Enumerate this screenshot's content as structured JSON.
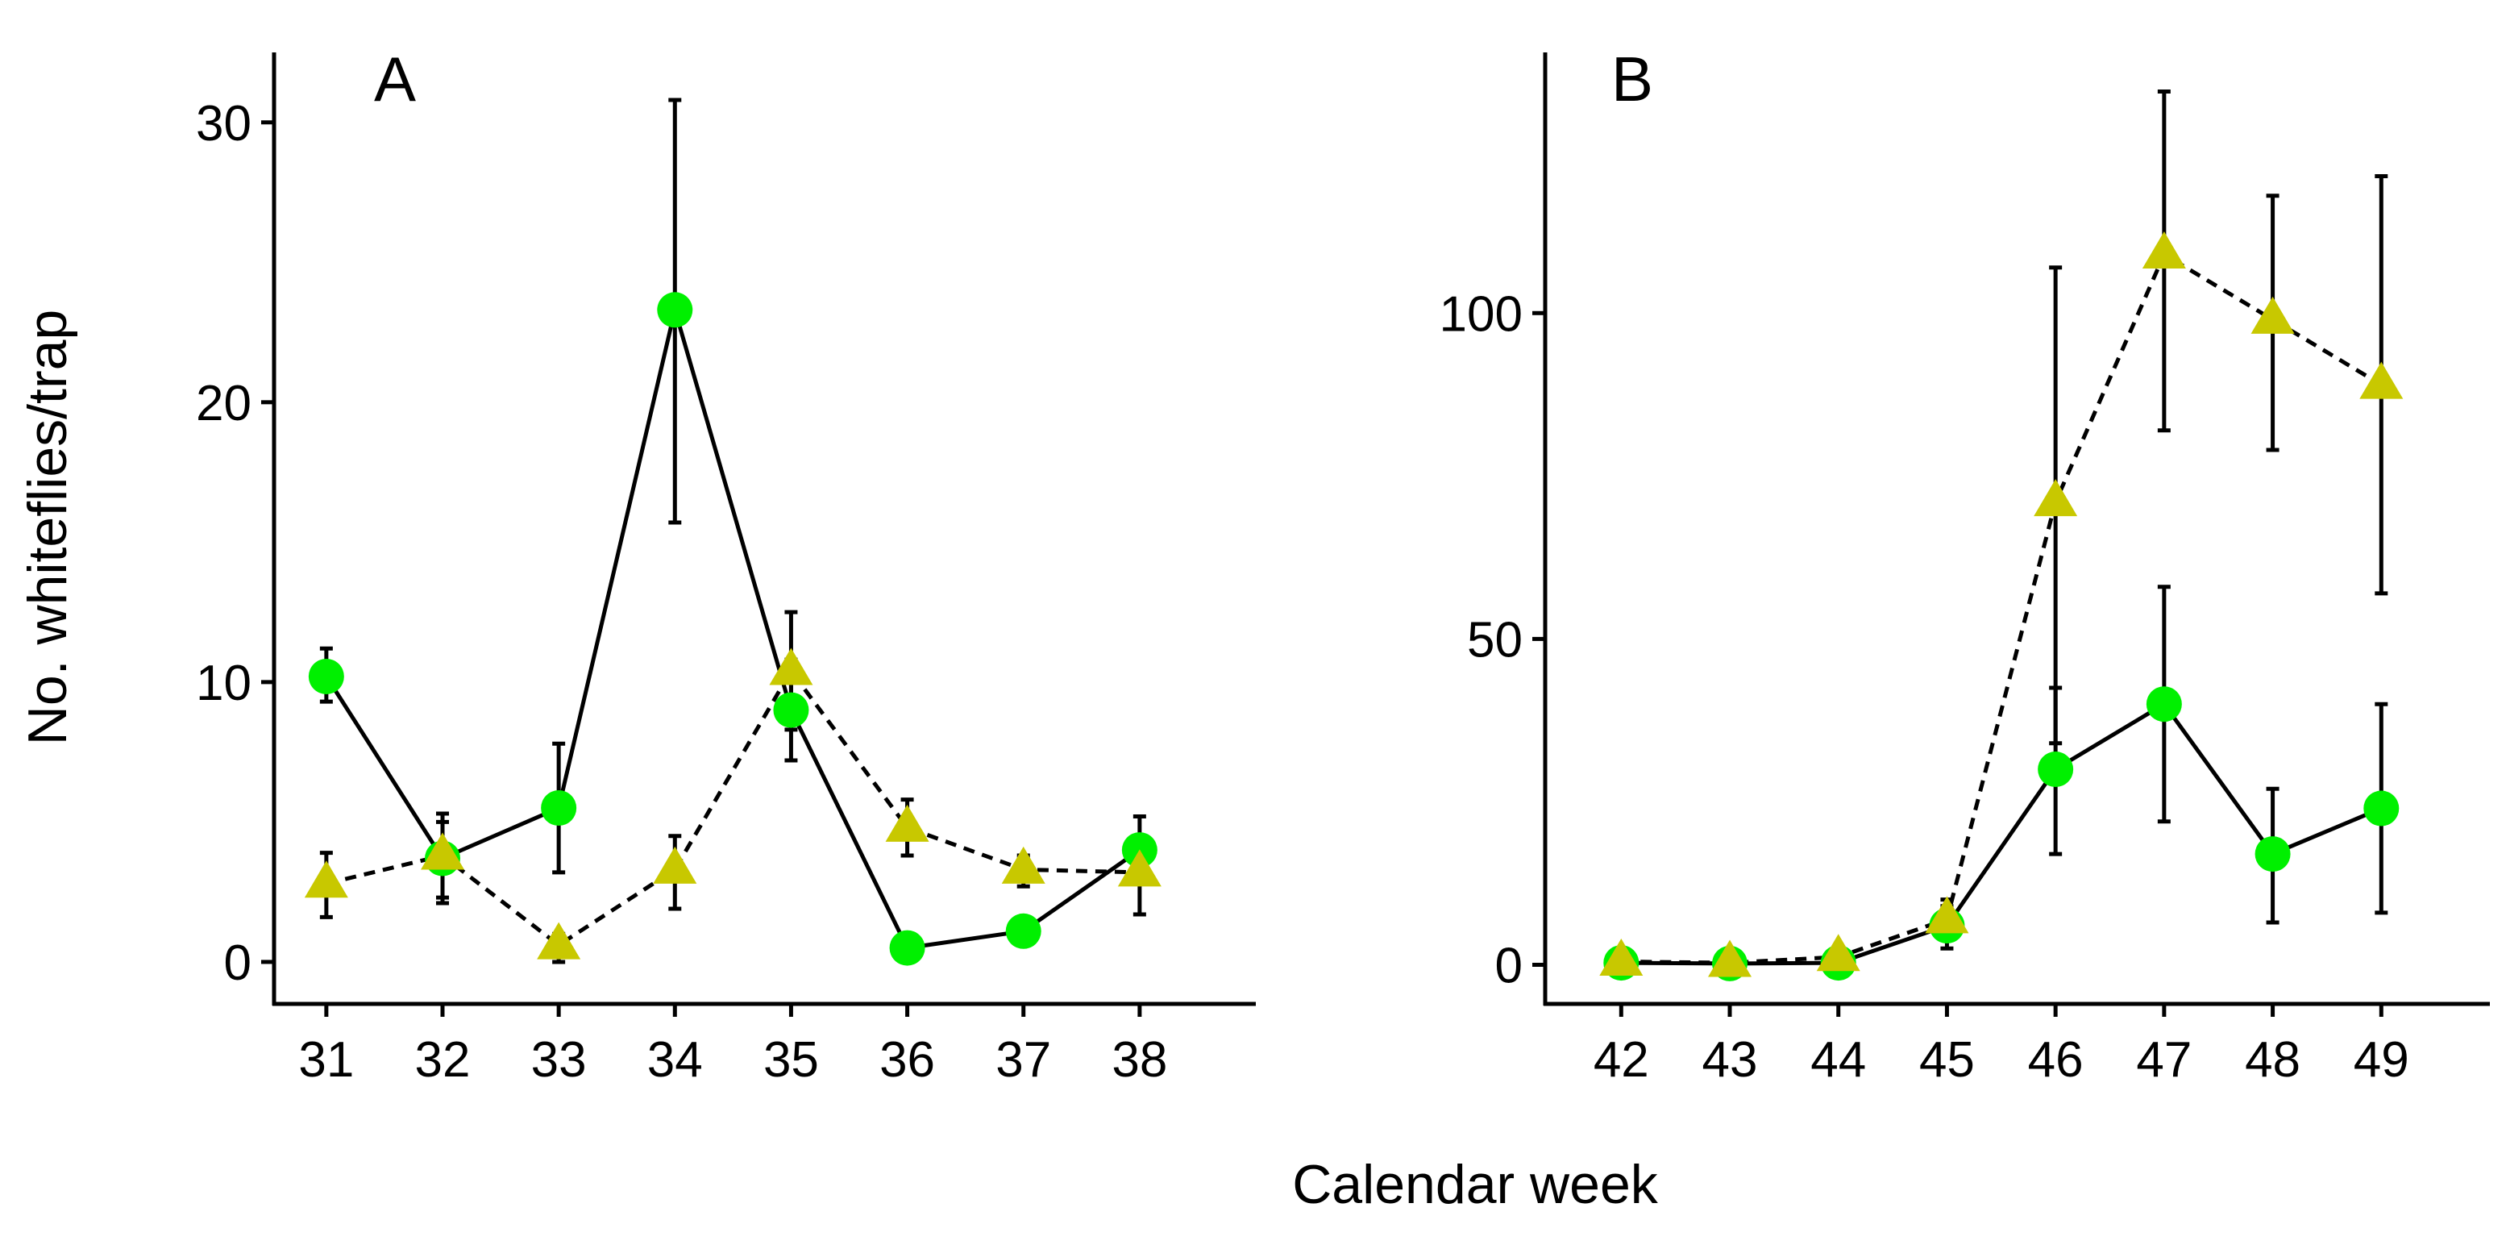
{
  "colors": {
    "circle_series": "#00f000",
    "triangle_series": "#c8c800",
    "axis": "#000000",
    "error_bar": "#000000"
  },
  "figure": {
    "xlabel": "Calendar week",
    "ylabel": "No. whiteflies/trap"
  },
  "chart_data": [
    {
      "type": "line",
      "panel_label": "A",
      "x": [
        31,
        32,
        33,
        34,
        35,
        36,
        37,
        38
      ],
      "xlim": [
        30.55,
        39.0
      ],
      "ylim": [
        -1.5,
        32.5
      ],
      "yticks": [
        0,
        10,
        20,
        30
      ],
      "grid": false,
      "legend": "none",
      "series": [
        {
          "marker": "circle",
          "linestyle": "solid",
          "color": "#00f000",
          "values": [
            10.2,
            3.7,
            5.5,
            23.3,
            9.0,
            0.5,
            1.1,
            4.0
          ],
          "error_low": [
            9.3,
            2.1,
            3.2,
            15.7,
            7.2,
            0.5,
            1.1,
            2.9
          ],
          "error_high": [
            11.2,
            5.3,
            7.8,
            30.8,
            10.8,
            0.5,
            1.1,
            5.2
          ]
        },
        {
          "marker": "triangle",
          "linestyle": "dashed",
          "color": "#c8c800",
          "values": [
            2.8,
            3.8,
            0.6,
            3.3,
            10.4,
            4.8,
            3.3,
            3.2
          ],
          "error_low": [
            1.6,
            2.3,
            0.0,
            1.9,
            8.3,
            3.8,
            2.7,
            1.7
          ],
          "error_high": [
            3.9,
            5.0,
            1.0,
            4.5,
            12.5,
            5.8,
            3.8,
            4.2
          ]
        }
      ]
    },
    {
      "type": "line",
      "panel_label": "B",
      "x": [
        42,
        43,
        44,
        45,
        46,
        47,
        48,
        49
      ],
      "xlim": [
        41.3,
        50.0
      ],
      "ylim": [
        -6,
        140
      ],
      "yticks": [
        0,
        50,
        100
      ],
      "grid": false,
      "legend": "none",
      "series": [
        {
          "marker": "circle",
          "linestyle": "solid",
          "color": "#00f000",
          "values": [
            0.3,
            0.2,
            0.3,
            6.0,
            30.0,
            40.0,
            17.0,
            24.0
          ],
          "error_low": [
            0.0,
            0.0,
            0.0,
            2.5,
            17.0,
            22.0,
            6.5,
            8.0
          ],
          "error_high": [
            0.6,
            0.5,
            0.6,
            9.0,
            42.5,
            58.0,
            27.0,
            40.0
          ]
        },
        {
          "marker": "triangle",
          "linestyle": "dashed",
          "color": "#c8c800",
          "values": [
            0.5,
            0.3,
            1.2,
            7.0,
            71.0,
            109.0,
            99.0,
            89.0
          ],
          "error_low": [
            0.0,
            0.0,
            0.3,
            4.0,
            34.0,
            82.0,
            79.0,
            57.0
          ],
          "error_high": [
            1.0,
            0.6,
            2.0,
            10.0,
            107.0,
            134.0,
            118.0,
            121.0
          ]
        }
      ]
    }
  ]
}
